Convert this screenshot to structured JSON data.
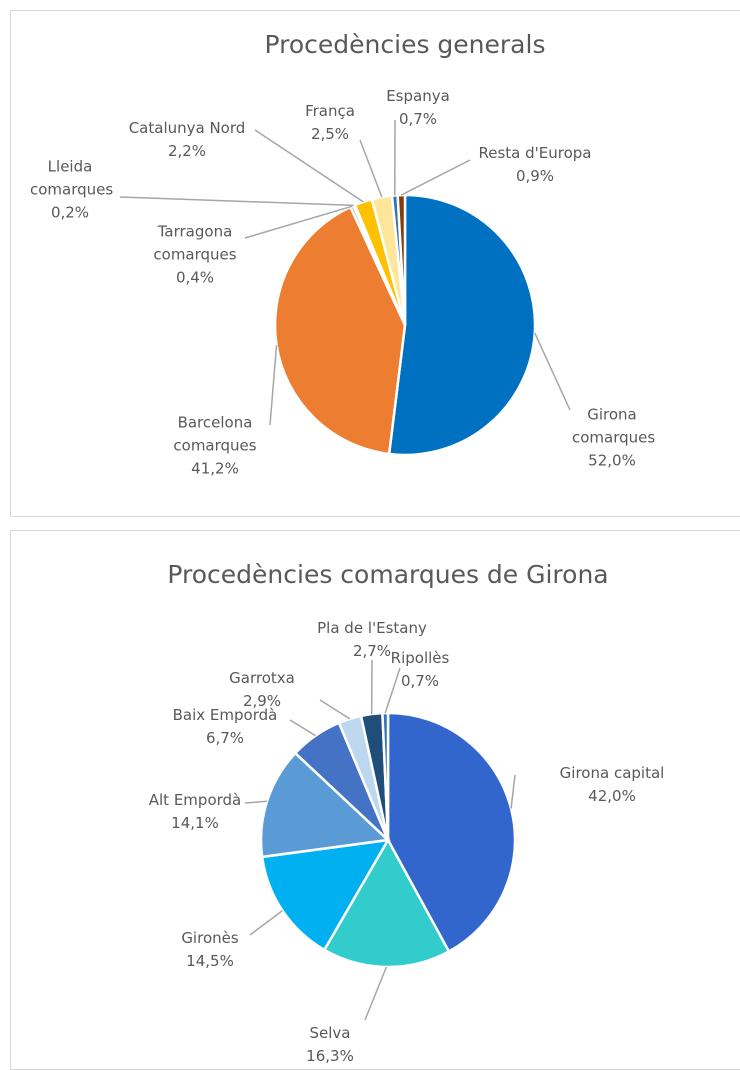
{
  "chart_data": [
    {
      "type": "pie",
      "title": "Procedències generals",
      "categories": [
        "Girona comarques",
        "Barcelona comarques",
        "Tarragona comarques",
        "Lleida comarques",
        "Catalunya Nord",
        "França",
        "Espanya",
        "Resta d'Europa"
      ],
      "values": [
        52.0,
        41.2,
        0.4,
        0.2,
        2.2,
        2.5,
        0.7,
        0.9
      ],
      "value_labels": [
        "52,0%",
        "41,2%",
        "0,4%",
        "0,2%",
        "2,2%",
        "2,5%",
        "0,7%",
        "0,9%"
      ],
      "colors": [
        "#0070c0",
        "#ed7d31",
        "#a5a5a5",
        "#5b9bd5",
        "#ffc000",
        "#ffe699",
        "#2e75b6",
        "#843c0c"
      ]
    },
    {
      "type": "pie",
      "title": "Procedències comarques de Girona",
      "categories": [
        "Girona capital",
        "Selva",
        "Gironès",
        "Alt Empordà",
        "Baix Empordà",
        "Garrotxa",
        "Pla de l'Estany",
        "Ripollès"
      ],
      "values": [
        42.0,
        16.3,
        14.5,
        14.1,
        6.7,
        2.9,
        2.7,
        0.7
      ],
      "value_labels": [
        "42,0%",
        "16,3%",
        "14,5%",
        "14,1%",
        "6,7%",
        "2,9%",
        "2,7%",
        "0,7%"
      ],
      "colors": [
        "#3366cc",
        "#33cccc",
        "#00b0f0",
        "#5b9bd5",
        "#4472c4",
        "#bdd7ee",
        "#1f4e79",
        "#2e75b6"
      ]
    }
  ]
}
